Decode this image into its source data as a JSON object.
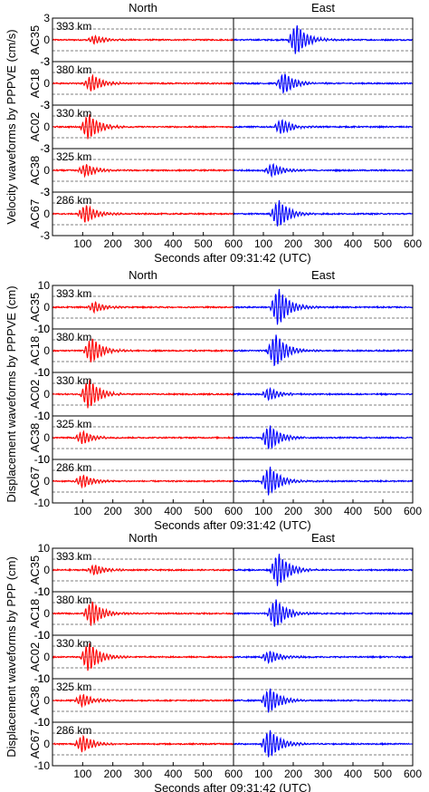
{
  "chart_data": [
    {
      "type": "line",
      "ylabel": "Velocity waveforms by PPPVE (cm/s)",
      "xlabel": "Seconds after 09:31:42 (UTC)",
      "columns": [
        "North",
        "East"
      ],
      "xlim": [
        0,
        600
      ],
      "xticks": [
        100,
        200,
        300,
        400,
        500,
        600
      ],
      "ylim": [
        -3,
        3
      ],
      "yticks": [
        3,
        0,
        -3
      ],
      "stations": [
        {
          "name": "AC35",
          "distance": "393 km",
          "north_amp": 0.6,
          "north_t": 140,
          "east_amp": 2.2,
          "east_t": 210
        },
        {
          "name": "AC18",
          "distance": "380 km",
          "north_amp": 1.2,
          "north_t": 130,
          "east_amp": 1.5,
          "east_t": 170
        },
        {
          "name": "AC02",
          "distance": "330 km",
          "north_amp": 1.8,
          "north_t": 120,
          "east_amp": 1.0,
          "east_t": 160
        },
        {
          "name": "AC38",
          "distance": "325 km",
          "north_amp": 0.9,
          "north_t": 110,
          "east_amp": 0.9,
          "east_t": 130
        },
        {
          "name": "AC67",
          "distance": "286 km",
          "north_amp": 1.3,
          "north_t": 110,
          "east_amp": 2.0,
          "east_t": 150
        }
      ]
    },
    {
      "type": "line",
      "ylabel": "Displacement waveforms by PPPVE (cm)",
      "xlabel": "Seconds after 09:31:42 (UTC)",
      "columns": [
        "North",
        "East"
      ],
      "xlim": [
        0,
        600
      ],
      "xticks": [
        100,
        200,
        300,
        400,
        500,
        600
      ],
      "ylim": [
        -10,
        10
      ],
      "yticks": [
        10,
        0,
        -10
      ],
      "stations": [
        {
          "name": "AC35",
          "distance": "393 km",
          "north_amp": 2.5,
          "north_t": 140,
          "east_amp": 9.0,
          "east_t": 150
        },
        {
          "name": "AC18",
          "distance": "380 km",
          "north_amp": 6.0,
          "north_t": 130,
          "east_amp": 8.0,
          "east_t": 140
        },
        {
          "name": "AC02",
          "distance": "330 km",
          "north_amp": 7.0,
          "north_t": 120,
          "east_amp": 3.0,
          "east_t": 120
        },
        {
          "name": "AC38",
          "distance": "325 km",
          "north_amp": 3.0,
          "north_t": 100,
          "east_amp": 6.0,
          "east_t": 120
        },
        {
          "name": "AC67",
          "distance": "286 km",
          "north_amp": 3.0,
          "north_t": 100,
          "east_amp": 7.0,
          "east_t": 120
        }
      ]
    },
    {
      "type": "line",
      "ylabel": "Displacement waveforms by PPP (cm)",
      "xlabel": "Seconds after 09:31:42 (UTC)",
      "columns": [
        "North",
        "East"
      ],
      "xlim": [
        0,
        600
      ],
      "xticks": [
        100,
        200,
        300,
        400,
        500,
        600
      ],
      "ylim": [
        -10,
        10
      ],
      "yticks": [
        10,
        0,
        -10
      ],
      "stations": [
        {
          "name": "AC35",
          "distance": "393 km",
          "north_amp": 2.5,
          "north_t": 140,
          "east_amp": 8.0,
          "east_t": 150
        },
        {
          "name": "AC18",
          "distance": "380 km",
          "north_amp": 6.0,
          "north_t": 130,
          "east_amp": 7.0,
          "east_t": 140
        },
        {
          "name": "AC02",
          "distance": "330 km",
          "north_amp": 7.0,
          "north_t": 120,
          "east_amp": 3.0,
          "east_t": 120
        },
        {
          "name": "AC38",
          "distance": "325 km",
          "north_amp": 3.0,
          "north_t": 100,
          "east_amp": 6.0,
          "east_t": 120
        },
        {
          "name": "AC67",
          "distance": "286 km",
          "north_amp": 4.0,
          "north_t": 100,
          "east_amp": 7.0,
          "east_t": 120
        }
      ]
    }
  ],
  "colors": {
    "north": "#ff0000",
    "east": "#0000ff",
    "grid": "#000000"
  }
}
